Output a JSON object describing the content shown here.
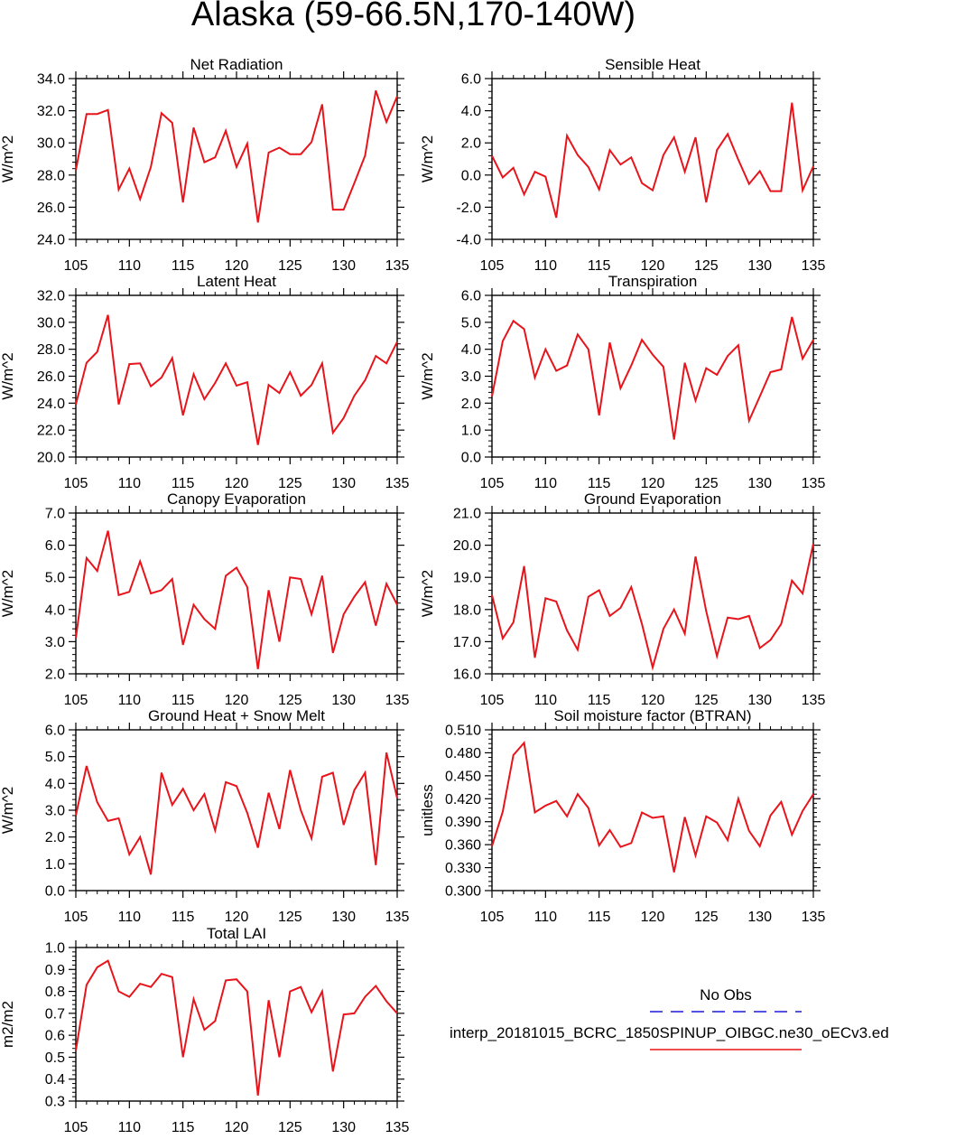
{
  "title": "Alaska (59-66.5N,170-140W)",
  "colors": {
    "model_line": "#e8141b",
    "obs_line": "#1a1adb",
    "axis": "#000000"
  },
  "legend": {
    "obs_label": "No Obs",
    "model_label": "interp_20181015_BCRC_1850SPINUP_OIBGC.ne30_oECv3.ed"
  },
  "chart_data": [
    {
      "type": "line",
      "title": "Net Radiation",
      "ylabel": "W/m^2",
      "xlim": [
        105,
        135
      ],
      "ylim": [
        24,
        34
      ],
      "yticks": [
        24,
        26,
        28,
        30,
        32,
        34
      ],
      "ytick_labels": [
        "24.0",
        "26.0",
        "28.0",
        "30.0",
        "32.0",
        "34.0"
      ],
      "xticks": [
        105,
        110,
        115,
        120,
        125,
        130,
        135
      ],
      "xtick_labels": [
        "105",
        "110",
        "115",
        "120",
        "125",
        "130",
        "135"
      ],
      "x": [
        105,
        106,
        107,
        108,
        109,
        110,
        111,
        112,
        113,
        114,
        115,
        116,
        117,
        118,
        119,
        120,
        121,
        122,
        123,
        124,
        125,
        126,
        127,
        128,
        129,
        130,
        131,
        132,
        133,
        134,
        135
      ],
      "values": [
        28.3,
        31.8,
        31.8,
        32.05,
        27.1,
        28.4,
        26.5,
        28.5,
        31.85,
        31.25,
        26.3,
        30.95,
        28.8,
        29.1,
        30.75,
        28.5,
        29.95,
        25.05,
        29.4,
        29.7,
        29.3,
        29.3,
        30.05,
        32.4,
        25.85,
        25.85,
        27.5,
        29.2,
        33.25,
        31.3,
        32.9
      ]
    },
    {
      "type": "line",
      "title": "Sensible Heat",
      "ylabel": "W/m^2",
      "xlim": [
        105,
        135
      ],
      "ylim": [
        -4,
        6
      ],
      "yticks": [
        -4,
        -2,
        0,
        2,
        4,
        6
      ],
      "ytick_labels": [
        "-4.0",
        "-2.0",
        "0.0",
        "2.0",
        "4.0",
        "6.0"
      ],
      "xticks": [
        105,
        110,
        115,
        120,
        125,
        130,
        135
      ],
      "xtick_labels": [
        "105",
        "110",
        "115",
        "120",
        "125",
        "130",
        "135"
      ],
      "x": [
        105,
        106,
        107,
        108,
        109,
        110,
        111,
        112,
        113,
        114,
        115,
        116,
        117,
        118,
        119,
        120,
        121,
        122,
        123,
        124,
        125,
        126,
        127,
        128,
        129,
        130,
        131,
        132,
        133,
        134,
        135
      ],
      "values": [
        1.2,
        -0.15,
        0.45,
        -1.2,
        0.2,
        -0.1,
        -2.65,
        2.45,
        1.25,
        0.5,
        -0.9,
        1.55,
        0.65,
        1.1,
        -0.5,
        -0.95,
        1.25,
        2.35,
        0.2,
        2.35,
        -1.7,
        1.55,
        2.55,
        0.95,
        -0.55,
        0.25,
        -1.0,
        -1.0,
        4.5,
        -0.95,
        0.55
      ]
    },
    {
      "type": "line",
      "title": "Latent Heat",
      "ylabel": "W/m^2",
      "xlim": [
        105,
        135
      ],
      "ylim": [
        20,
        32
      ],
      "yticks": [
        20,
        22,
        24,
        26,
        28,
        30,
        32
      ],
      "ytick_labels": [
        "20.0",
        "22.0",
        "24.0",
        "26.0",
        "28.0",
        "30.0",
        "32.0"
      ],
      "xticks": [
        105,
        110,
        115,
        120,
        125,
        130,
        135
      ],
      "xtick_labels": [
        "105",
        "110",
        "115",
        "120",
        "125",
        "130",
        "135"
      ],
      "x": [
        105,
        106,
        107,
        108,
        109,
        110,
        111,
        112,
        113,
        114,
        115,
        116,
        117,
        118,
        119,
        120,
        121,
        122,
        123,
        124,
        125,
        126,
        127,
        128,
        129,
        130,
        131,
        132,
        133,
        134,
        135
      ],
      "values": [
        23.9,
        27.0,
        27.8,
        30.55,
        23.9,
        26.9,
        26.95,
        25.25,
        25.9,
        27.35,
        23.1,
        26.15,
        24.3,
        25.5,
        26.95,
        25.3,
        25.55,
        20.9,
        25.35,
        24.75,
        26.3,
        24.55,
        25.35,
        26.95,
        21.8,
        22.9,
        24.55,
        25.7,
        27.5,
        26.95,
        28.55
      ]
    },
    {
      "type": "line",
      "title": "Transpiration",
      "ylabel": "W/m^2",
      "xlim": [
        105,
        135
      ],
      "ylim": [
        0,
        6
      ],
      "yticks": [
        0,
        1,
        2,
        3,
        4,
        5,
        6
      ],
      "ytick_labels": [
        "0.0",
        "1.0",
        "2.0",
        "3.0",
        "4.0",
        "5.0",
        "6.0"
      ],
      "xticks": [
        105,
        110,
        115,
        120,
        125,
        130,
        135
      ],
      "xtick_labels": [
        "105",
        "110",
        "115",
        "120",
        "125",
        "130",
        "135"
      ],
      "x": [
        105,
        106,
        107,
        108,
        109,
        110,
        111,
        112,
        113,
        114,
        115,
        116,
        117,
        118,
        119,
        120,
        121,
        122,
        123,
        124,
        125,
        126,
        127,
        128,
        129,
        130,
        131,
        132,
        133,
        134,
        135
      ],
      "values": [
        2.25,
        4.3,
        5.05,
        4.75,
        2.95,
        4.0,
        3.2,
        3.4,
        4.55,
        4.0,
        1.55,
        4.25,
        2.55,
        3.4,
        4.35,
        3.8,
        3.35,
        0.65,
        3.5,
        2.1,
        3.3,
        3.05,
        3.75,
        4.15,
        1.35,
        2.25,
        3.15,
        3.25,
        5.2,
        3.65,
        4.35
      ]
    },
    {
      "type": "line",
      "title": "Canopy Evaporation",
      "ylabel": "W/m^2",
      "xlim": [
        105,
        135
      ],
      "ylim": [
        2,
        7
      ],
      "yticks": [
        2,
        3,
        4,
        5,
        6,
        7
      ],
      "ytick_labels": [
        "2.0",
        "3.0",
        "4.0",
        "5.0",
        "6.0",
        "7.0"
      ],
      "xticks": [
        105,
        110,
        115,
        120,
        125,
        130,
        135
      ],
      "xtick_labels": [
        "105",
        "110",
        "115",
        "120",
        "125",
        "130",
        "135"
      ],
      "x": [
        105,
        106,
        107,
        108,
        109,
        110,
        111,
        112,
        113,
        114,
        115,
        116,
        117,
        118,
        119,
        120,
        121,
        122,
        123,
        124,
        125,
        126,
        127,
        128,
        129,
        130,
        131,
        132,
        133,
        134,
        135
      ],
      "values": [
        3.1,
        5.6,
        5.2,
        6.45,
        4.45,
        4.55,
        5.5,
        4.5,
        4.6,
        4.95,
        2.9,
        4.15,
        3.7,
        3.4,
        5.05,
        5.3,
        4.7,
        2.15,
        4.6,
        3.0,
        5.0,
        4.95,
        3.85,
        5.05,
        2.65,
        3.85,
        4.4,
        4.85,
        3.5,
        4.8,
        4.15
      ]
    },
    {
      "type": "line",
      "title": "Ground Evaporation",
      "ylabel": "W/m^2",
      "xlim": [
        105,
        135
      ],
      "ylim": [
        16,
        21
      ],
      "yticks": [
        16,
        17,
        18,
        19,
        20,
        21
      ],
      "ytick_labels": [
        "16.0",
        "17.0",
        "18.0",
        "19.0",
        "20.0",
        "21.0"
      ],
      "xticks": [
        105,
        110,
        115,
        120,
        125,
        130,
        135
      ],
      "xtick_labels": [
        "105",
        "110",
        "115",
        "120",
        "125",
        "130",
        "135"
      ],
      "x": [
        105,
        106,
        107,
        108,
        109,
        110,
        111,
        112,
        113,
        114,
        115,
        116,
        117,
        118,
        119,
        120,
        121,
        122,
        123,
        124,
        125,
        126,
        127,
        128,
        129,
        130,
        131,
        132,
        133,
        134,
        135
      ],
      "values": [
        18.45,
        17.1,
        17.6,
        19.35,
        16.5,
        18.35,
        18.25,
        17.35,
        16.75,
        18.4,
        18.6,
        17.8,
        18.05,
        18.7,
        17.55,
        16.2,
        17.4,
        18.0,
        17.25,
        19.65,
        17.95,
        16.55,
        17.75,
        17.7,
        17.8,
        16.8,
        17.05,
        17.55,
        18.9,
        18.5,
        20.05
      ]
    },
    {
      "type": "line",
      "title": "Ground Heat + Snow Melt",
      "ylabel": "W/m^2",
      "xlim": [
        105,
        135
      ],
      "ylim": [
        0,
        6
      ],
      "yticks": [
        0,
        1,
        2,
        3,
        4,
        5,
        6
      ],
      "ytick_labels": [
        "0.0",
        "1.0",
        "2.0",
        "3.0",
        "4.0",
        "5.0",
        "6.0"
      ],
      "xticks": [
        105,
        110,
        115,
        120,
        125,
        130,
        135
      ],
      "xtick_labels": [
        "105",
        "110",
        "115",
        "120",
        "125",
        "130",
        "135"
      ],
      "x": [
        105,
        106,
        107,
        108,
        109,
        110,
        111,
        112,
        113,
        114,
        115,
        116,
        117,
        118,
        119,
        120,
        121,
        122,
        123,
        124,
        125,
        126,
        127,
        128,
        129,
        130,
        131,
        132,
        133,
        134,
        135
      ],
      "values": [
        2.8,
        4.65,
        3.3,
        2.6,
        2.7,
        1.35,
        2.0,
        0.6,
        4.4,
        3.2,
        3.8,
        3.0,
        3.6,
        2.25,
        4.05,
        3.9,
        2.9,
        1.6,
        3.65,
        2.3,
        4.5,
        3.0,
        1.95,
        4.25,
        4.4,
        2.45,
        3.75,
        4.4,
        0.95,
        5.15,
        3.45
      ]
    },
    {
      "type": "line",
      "title": "Soil moisture factor (BTRAN)",
      "ylabel": "unitless",
      "xlim": [
        105,
        135
      ],
      "ylim": [
        0.3,
        0.51
      ],
      "yticks": [
        0.3,
        0.33,
        0.36,
        0.39,
        0.42,
        0.45,
        0.48,
        0.51
      ],
      "ytick_labels": [
        "0.300",
        "0.330",
        "0.360",
        "0.390",
        "0.420",
        "0.450",
        "0.480",
        "0.510"
      ],
      "xticks": [
        105,
        110,
        115,
        120,
        125,
        130,
        135
      ],
      "xtick_labels": [
        "105",
        "110",
        "115",
        "120",
        "125",
        "130",
        "135"
      ],
      "x": [
        105,
        106,
        107,
        108,
        109,
        110,
        111,
        112,
        113,
        114,
        115,
        116,
        117,
        118,
        119,
        120,
        121,
        122,
        123,
        124,
        125,
        126,
        127,
        128,
        129,
        130,
        131,
        132,
        133,
        134,
        135
      ],
      "values": [
        0.358,
        0.403,
        0.477,
        0.493,
        0.402,
        0.411,
        0.417,
        0.397,
        0.426,
        0.408,
        0.359,
        0.379,
        0.357,
        0.362,
        0.402,
        0.395,
        0.397,
        0.324,
        0.396,
        0.346,
        0.397,
        0.389,
        0.366,
        0.42,
        0.378,
        0.358,
        0.398,
        0.416,
        0.373,
        0.404,
        0.426
      ]
    },
    {
      "type": "line",
      "title": "Total LAI",
      "ylabel": "m2/m2",
      "xlim": [
        105,
        135
      ],
      "ylim": [
        0.3,
        1.0
      ],
      "yticks": [
        0.3,
        0.4,
        0.5,
        0.6,
        0.7,
        0.8,
        0.9,
        1.0
      ],
      "ytick_labels": [
        "0.3",
        "0.4",
        "0.5",
        "0.6",
        "0.7",
        "0.8",
        "0.9",
        "1.0"
      ],
      "xticks": [
        105,
        110,
        115,
        120,
        125,
        130,
        135
      ],
      "xtick_labels": [
        "105",
        "110",
        "115",
        "120",
        "125",
        "130",
        "135"
      ],
      "x": [
        105,
        106,
        107,
        108,
        109,
        110,
        111,
        112,
        113,
        114,
        115,
        116,
        117,
        118,
        119,
        120,
        121,
        122,
        123,
        124,
        125,
        126,
        127,
        128,
        129,
        130,
        131,
        132,
        133,
        134,
        135
      ],
      "values": [
        0.53,
        0.83,
        0.91,
        0.94,
        0.8,
        0.775,
        0.835,
        0.82,
        0.88,
        0.865,
        0.5,
        0.765,
        0.625,
        0.665,
        0.85,
        0.855,
        0.8,
        0.325,
        0.76,
        0.5,
        0.8,
        0.82,
        0.705,
        0.8,
        0.435,
        0.695,
        0.7,
        0.775,
        0.825,
        0.755,
        0.7
      ]
    }
  ]
}
